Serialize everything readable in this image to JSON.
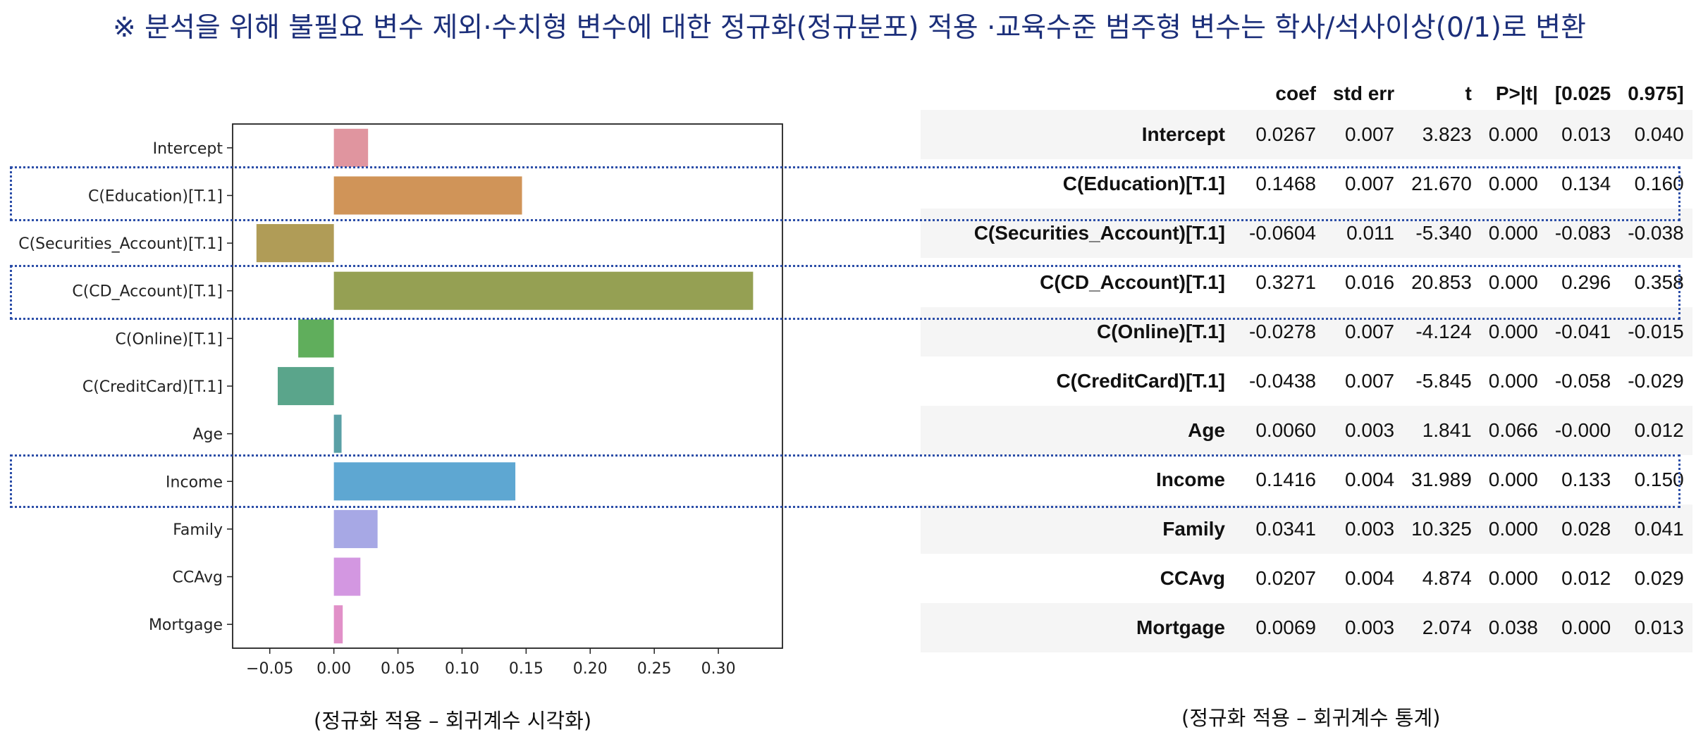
{
  "title": "※ 분석을 위해 불필요 변수 제외·수치형 변수에 대한 정규화(정규분포) 적용 ·교육수준 범주형 변수는 학사/석사이상(0/1)로 변환",
  "chart_data": {
    "type": "bar",
    "orientation": "horizontal",
    "categories": [
      "Intercept",
      "C(Education)[T.1]",
      "C(Securities_Account)[T.1]",
      "C(CD_Account)[T.1]",
      "C(Online)[T.1]",
      "C(CreditCard)[T.1]",
      "Age",
      "Income",
      "Family",
      "CCAvg",
      "Mortgage"
    ],
    "values": [
      0.0267,
      0.1468,
      -0.0604,
      0.3271,
      -0.0278,
      -0.0438,
      0.006,
      0.1416,
      0.0341,
      0.0207,
      0.0069
    ],
    "colors": [
      "#e0959f",
      "#d09458",
      "#b09c57",
      "#95a053",
      "#60ae5c",
      "#5aa58b",
      "#5aa0a6",
      "#5ea7d2",
      "#a7a8e5",
      "#d397e1",
      "#e190c8"
    ],
    "xticks": [
      "−0.05",
      "0.00",
      "0.05",
      "0.10",
      "0.15",
      "0.20",
      "0.25",
      "0.30"
    ],
    "xtick_values": [
      -0.05,
      0,
      0.05,
      0.1,
      0.15,
      0.2,
      0.25,
      0.3
    ],
    "xlim": [
      -0.079,
      0.35
    ],
    "grid": false,
    "highlighted": [
      "C(Education)[T.1]",
      "C(CD_Account)[T.1]",
      "Income"
    ]
  },
  "table": {
    "columns": [
      "coef",
      "std err",
      "t",
      "P>|t|",
      "[0.025",
      "0.975]"
    ],
    "rows": [
      {
        "label": "Intercept",
        "values": [
          "0.0267",
          "0.007",
          "3.823",
          "0.000",
          "0.013",
          "0.040"
        ]
      },
      {
        "label": "C(Education)[T.1]",
        "values": [
          "0.1468",
          "0.007",
          "21.670",
          "0.000",
          "0.134",
          "0.160"
        ]
      },
      {
        "label": "C(Securities_Account)[T.1]",
        "values": [
          "-0.0604",
          "0.011",
          "-5.340",
          "0.000",
          "-0.083",
          "-0.038"
        ]
      },
      {
        "label": "C(CD_Account)[T.1]",
        "values": [
          "0.3271",
          "0.016",
          "20.853",
          "0.000",
          "0.296",
          "0.358"
        ]
      },
      {
        "label": "C(Online)[T.1]",
        "values": [
          "-0.0278",
          "0.007",
          "-4.124",
          "0.000",
          "-0.041",
          "-0.015"
        ]
      },
      {
        "label": "C(CreditCard)[T.1]",
        "values": [
          "-0.0438",
          "0.007",
          "-5.845",
          "0.000",
          "-0.058",
          "-0.029"
        ]
      },
      {
        "label": "Age",
        "values": [
          "0.0060",
          "0.003",
          "1.841",
          "0.066",
          "-0.000",
          "0.012"
        ]
      },
      {
        "label": "Income",
        "values": [
          "0.1416",
          "0.004",
          "31.989",
          "0.000",
          "0.133",
          "0.150"
        ]
      },
      {
        "label": "Family",
        "values": [
          "0.0341",
          "0.003",
          "10.325",
          "0.000",
          "0.028",
          "0.041"
        ]
      },
      {
        "label": "CCAvg",
        "values": [
          "0.0207",
          "0.004",
          "4.874",
          "0.000",
          "0.012",
          "0.029"
        ]
      },
      {
        "label": "Mortgage",
        "values": [
          "0.0069",
          "0.003",
          "2.074",
          "0.038",
          "0.000",
          "0.013"
        ]
      }
    ]
  },
  "captions": {
    "left": "(정규화 적용 – 회귀계수 시각화)",
    "right": "(정규화 적용 – 회귀계수 통계)"
  },
  "highlight_color": "#2c4ea8"
}
